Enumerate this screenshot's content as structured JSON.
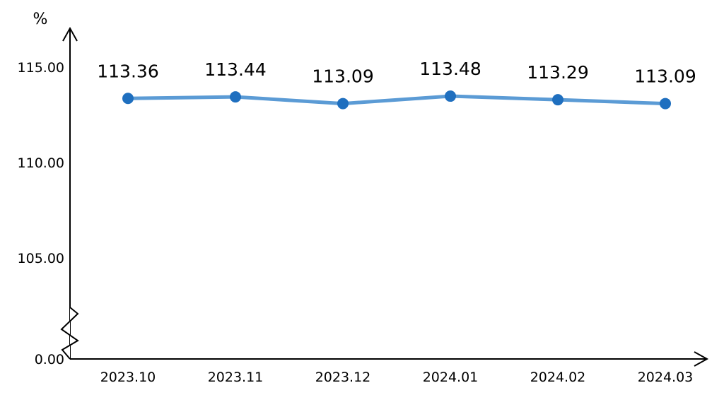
{
  "chart_data": {
    "type": "line",
    "title": "",
    "xlabel": "",
    "ylabel": "",
    "y_unit": "%",
    "categories": [
      "2023.10",
      "2023.11",
      "2023.12",
      "2024.01",
      "2024.02",
      "2024.03"
    ],
    "series": [
      {
        "values": [
          113.36,
          113.44,
          113.09,
          113.48,
          113.29,
          113.09
        ],
        "data_labels": [
          "113.36",
          "113.44",
          "113.09",
          "113.48",
          "113.29",
          "113.09"
        ]
      }
    ],
    "y_ticks": [
      {
        "value": 0,
        "label": "0.00"
      },
      {
        "value": 105,
        "label": "105.00"
      },
      {
        "value": 110,
        "label": "110.00"
      },
      {
        "value": 115,
        "label": "115.00"
      }
    ],
    "ylim": [
      0,
      115
    ],
    "y_axis_break": true,
    "grid": false,
    "legend": "none",
    "colors": {
      "line": "#5b9bd5",
      "marker": "#1f6fbf",
      "axis": "#000000"
    }
  }
}
